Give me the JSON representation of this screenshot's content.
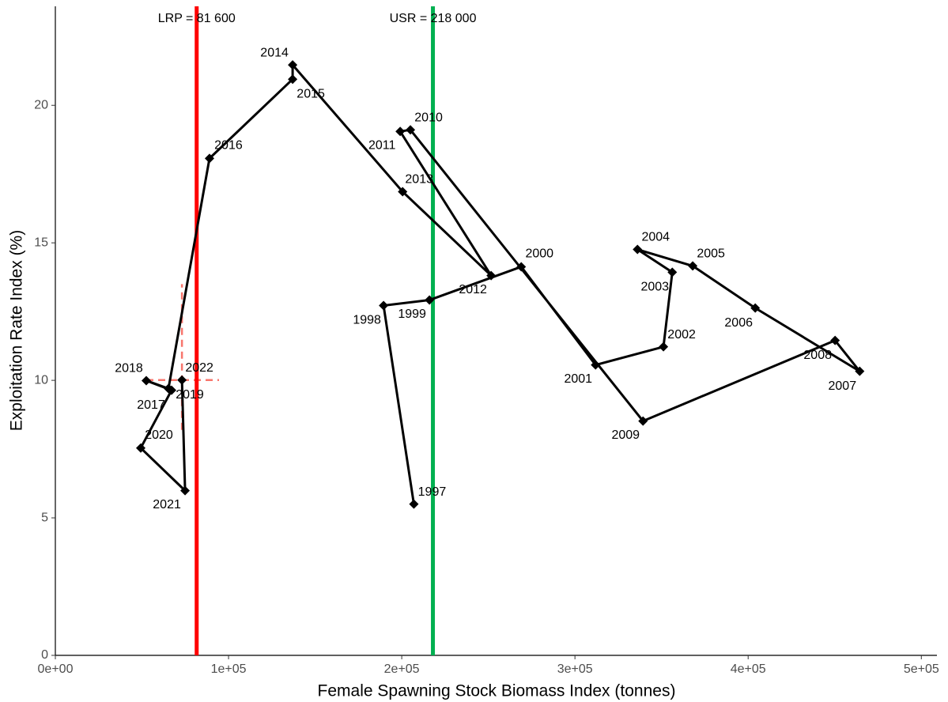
{
  "chart_data": {
    "type": "path",
    "xlabel": "Female Spawning Stock Biomass Index (tonnes)",
    "ylabel": "Exploitation Rate Index (%)",
    "labels": [
      "1997",
      "1998",
      "1999",
      "2000",
      "2001",
      "2002",
      "2003",
      "2004",
      "2005",
      "2006",
      "2007",
      "2008",
      "2009",
      "2010",
      "2011",
      "2012",
      "2013",
      "2014",
      "2015",
      "2016",
      "2017",
      "2018",
      "2019",
      "2020",
      "2021",
      "2022"
    ],
    "x": [
      207000,
      189500,
      216000,
      269000,
      311900,
      351100,
      356200,
      336100,
      368000,
      404100,
      464400,
      450200,
      339300,
      205000,
      199100,
      251600,
      200500,
      137000,
      137000,
      89000,
      65300,
      52500,
      67100,
      49300,
      74900,
      73100
    ],
    "values": [
      5.5,
      12.72,
      12.92,
      14.13,
      10.56,
      11.22,
      13.93,
      14.76,
      14.16,
      12.63,
      10.33,
      11.45,
      8.52,
      19.11,
      19.05,
      13.81,
      16.86,
      21.47,
      20.95,
      18.07,
      9.7,
      9.99,
      9.64,
      7.54,
      5.99,
      10.01
    ],
    "color": "#000000",
    "uncertainty": {
      "xrange": [
        52500,
        94500
      ],
      "yrange": [
        8.2,
        13.5
      ],
      "color": "#f8766d"
    },
    "reference_lines": [
      {
        "value": 81600,
        "label": "LRP = 81 600",
        "color": "#ff0000"
      },
      {
        "value": 218000,
        "label": "USR = 218 000",
        "color": "#00b050"
      }
    ],
    "xlim": [
      0,
      509000
    ],
    "ylim": [
      0,
      23.6
    ],
    "xticks": [
      {
        "value": 0,
        "label": "0e+00"
      },
      {
        "value": 100000,
        "label": "1e+05"
      },
      {
        "value": 200000,
        "label": "2e+05"
      },
      {
        "value": 300000,
        "label": "3e+05"
      },
      {
        "value": 400000,
        "label": "4e+05"
      },
      {
        "value": 500000,
        "label": "5e+05"
      }
    ],
    "yticks": [
      0,
      5,
      10,
      15,
      20
    ],
    "grid": false
  }
}
